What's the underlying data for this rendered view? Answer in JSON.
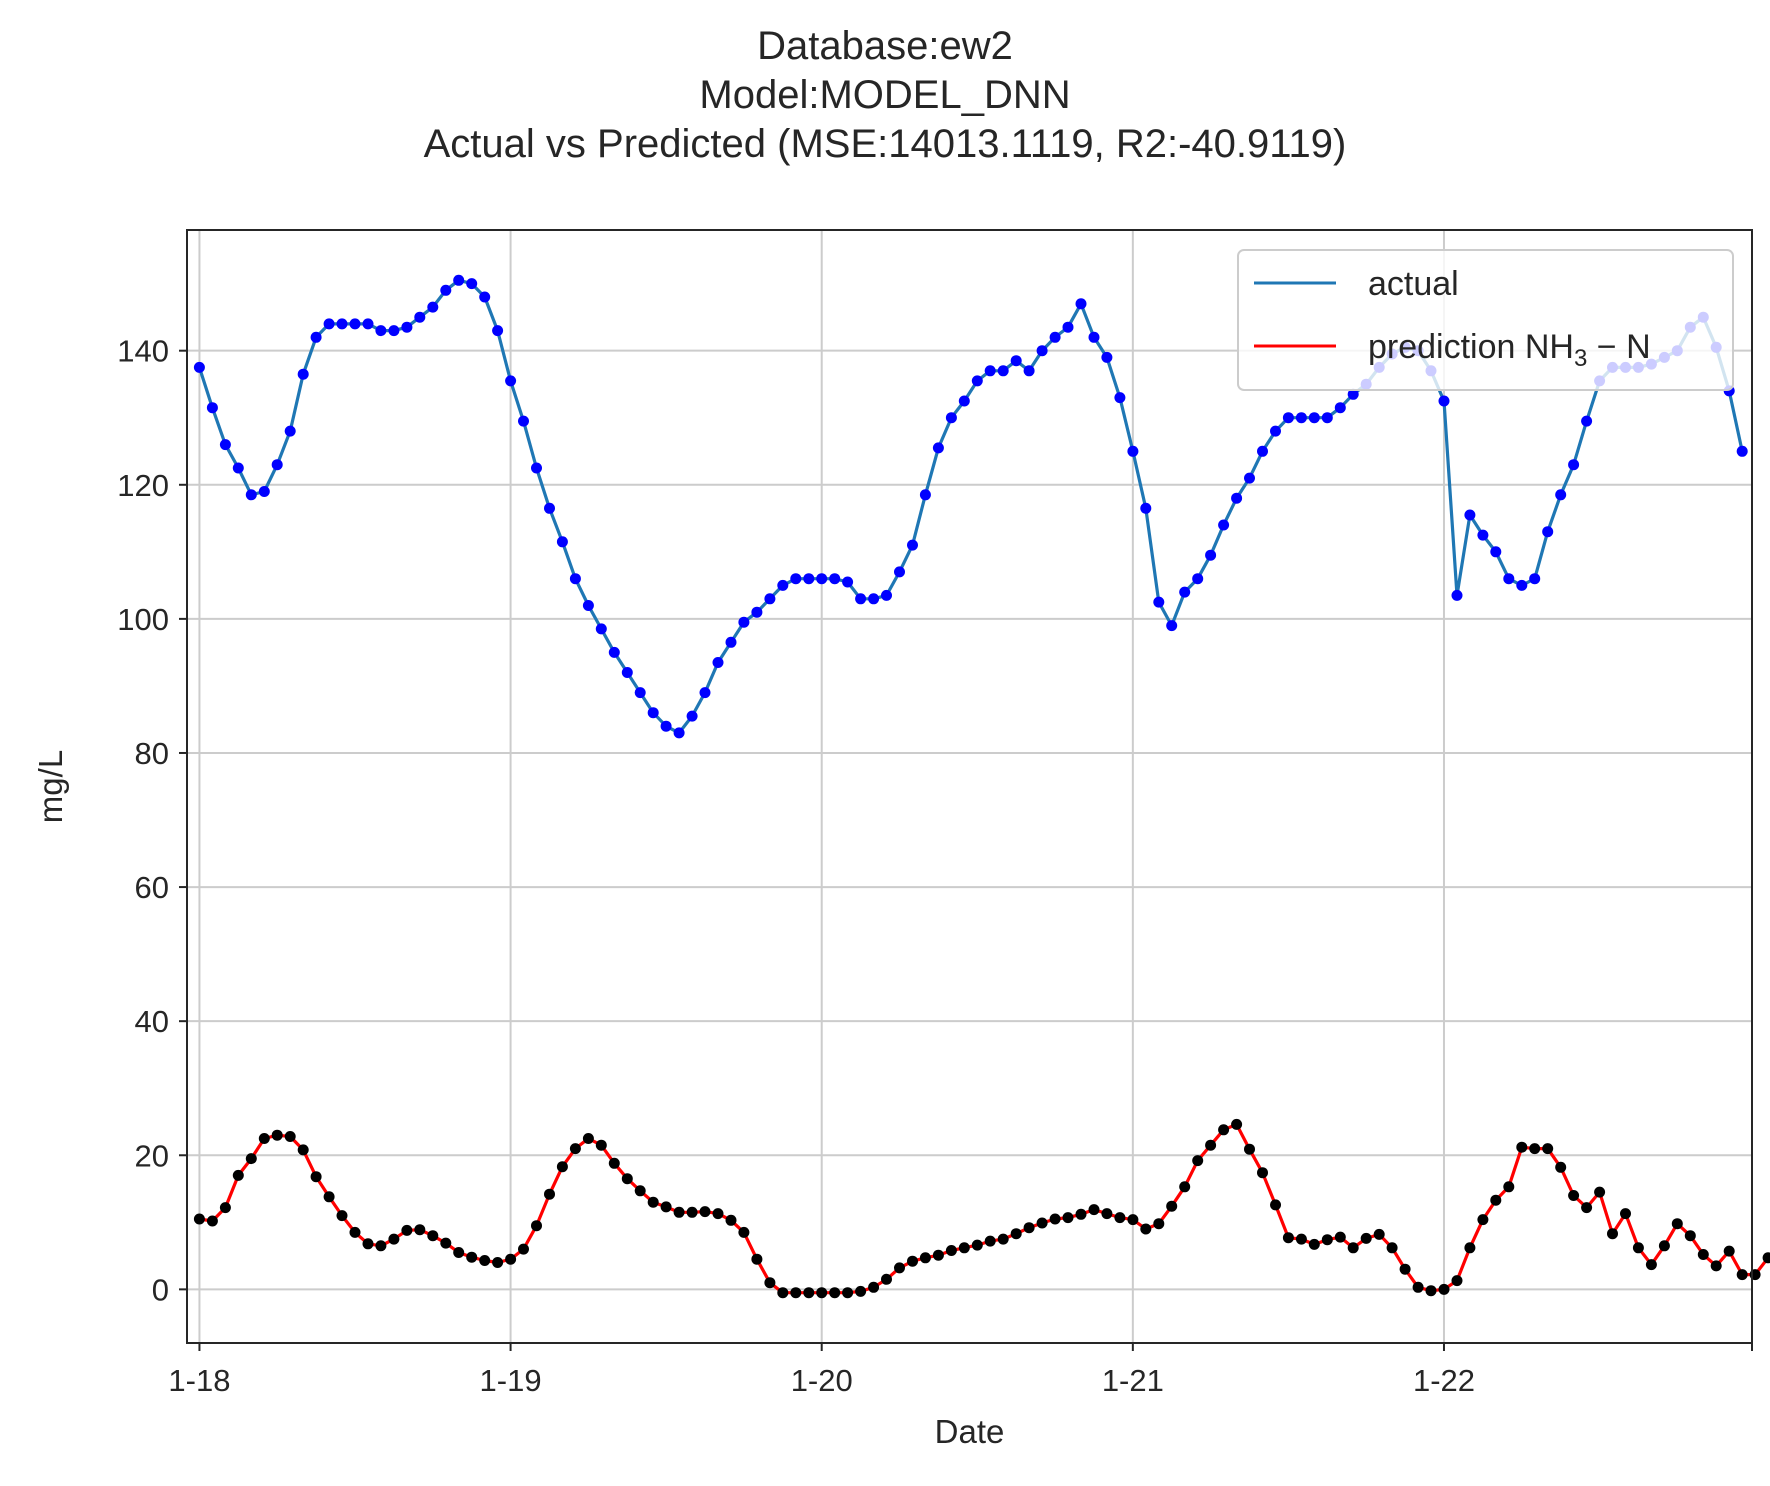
{
  "chart_data": {
    "type": "line",
    "title": "Database:ew2",
    "subtitle": "Model:MODEL_DNN",
    "subtitle2": "Actual vs Predicted (MSE:14013.1119, R2:-40.9119)",
    "xlabel": "Date",
    "ylabel": "mg/L",
    "xlim": [
      -0.04,
      4.99
    ],
    "ylim": [
      -8,
      158
    ],
    "x_ticks": [
      {
        "value": 0,
        "label": "1-18"
      },
      {
        "value": 1,
        "label": "1-19"
      },
      {
        "value": 2,
        "label": "1-20"
      },
      {
        "value": 3,
        "label": "1-21"
      },
      {
        "value": 4,
        "label": "1-22"
      }
    ],
    "y_ticks": [
      0,
      20,
      40,
      60,
      80,
      100,
      120,
      140
    ],
    "grid": true,
    "legend_position": "top-right",
    "legend": [
      {
        "label": "actual",
        "color": "#1f77b4"
      },
      {
        "label_main": "prediction NH",
        "label_sub": "3",
        "label_tail": " − N",
        "color": "#ff0000"
      }
    ],
    "step_days": 0.041667,
    "series": [
      {
        "name": "actual",
        "color": "#1f77b4",
        "marker_color": "#0000ff",
        "values": [
          137.5,
          131.5,
          126,
          122.5,
          118.5,
          119,
          123,
          128,
          136.5,
          142,
          144,
          144,
          144,
          144,
          143,
          143,
          143.5,
          145,
          146.5,
          149,
          150.5,
          150,
          148,
          143,
          135.5,
          129.5,
          122.5,
          116.5,
          111.5,
          106,
          102,
          98.5,
          95,
          92,
          89,
          86,
          84,
          83,
          85.5,
          89,
          93.5,
          96.5,
          99.5,
          101,
          103,
          105,
          106,
          106,
          106,
          106,
          105.5,
          103,
          103,
          103.5,
          107,
          111,
          118.5,
          125.5,
          130,
          132.5,
          135.5,
          137,
          137,
          138.5,
          137,
          140,
          142,
          143.5,
          147,
          142,
          139,
          133,
          125,
          116.5,
          102.5,
          99,
          104,
          106,
          109.5,
          114,
          118,
          121,
          125,
          128,
          130,
          130,
          130,
          130,
          131.5,
          133.5,
          135,
          137.5,
          139.5,
          140.5,
          140,
          137,
          132.5,
          103.5,
          115.5,
          112.5,
          110,
          106,
          105,
          106,
          113,
          118.5,
          123,
          129.5,
          135.5,
          137.5,
          137.5,
          137.5,
          138,
          139,
          140,
          143.5,
          145,
          140.5,
          134,
          125
        ]
      },
      {
        "name": "prediction NH3 − N",
        "color": "#ff0000",
        "marker_color": "#000000",
        "values": [
          10.5,
          10.2,
          12.2,
          17,
          19.5,
          22.5,
          23,
          22.8,
          20.8,
          16.8,
          13.8,
          11,
          8.5,
          6.8,
          6.5,
          7.5,
          8.8,
          8.9,
          8,
          6.9,
          5.5,
          4.8,
          4.3,
          4,
          4.5,
          6,
          9.5,
          14.2,
          18.3,
          21,
          22.5,
          21.5,
          18.8,
          16.5,
          14.7,
          13,
          12.3,
          11.5,
          11.5,
          11.6,
          11.3,
          10.3,
          8.5,
          4.5,
          1,
          -0.5,
          -0.5,
          -0.5,
          -0.5,
          -0.5,
          -0.5,
          -0.3,
          0.3,
          1.5,
          3.2,
          4.2,
          4.7,
          5.1,
          5.8,
          6.2,
          6.6,
          7.2,
          7.5,
          8.3,
          9.2,
          9.9,
          10.5,
          10.7,
          11.2,
          11.9,
          11.3,
          10.7,
          10.4,
          9,
          9.8,
          12.4,
          15.3,
          19.2,
          21.5,
          23.8,
          24.6,
          20.9,
          17.4,
          12.6,
          7.7,
          7.5,
          6.7,
          7.4,
          7.8,
          6.2,
          7.6,
          8.2,
          6.2,
          3,
          0.3,
          -0.2,
          0,
          1.3,
          6.2,
          10.4,
          13.3,
          15.3,
          21.2,
          21,
          21,
          18.2,
          14,
          12.2,
          14.5,
          8.3,
          11.3,
          6.2,
          3.7,
          6.5,
          9.8,
          8,
          5.2,
          3.5,
          5.7,
          2.2,
          2.2,
          4.7
        ]
      }
    ]
  }
}
